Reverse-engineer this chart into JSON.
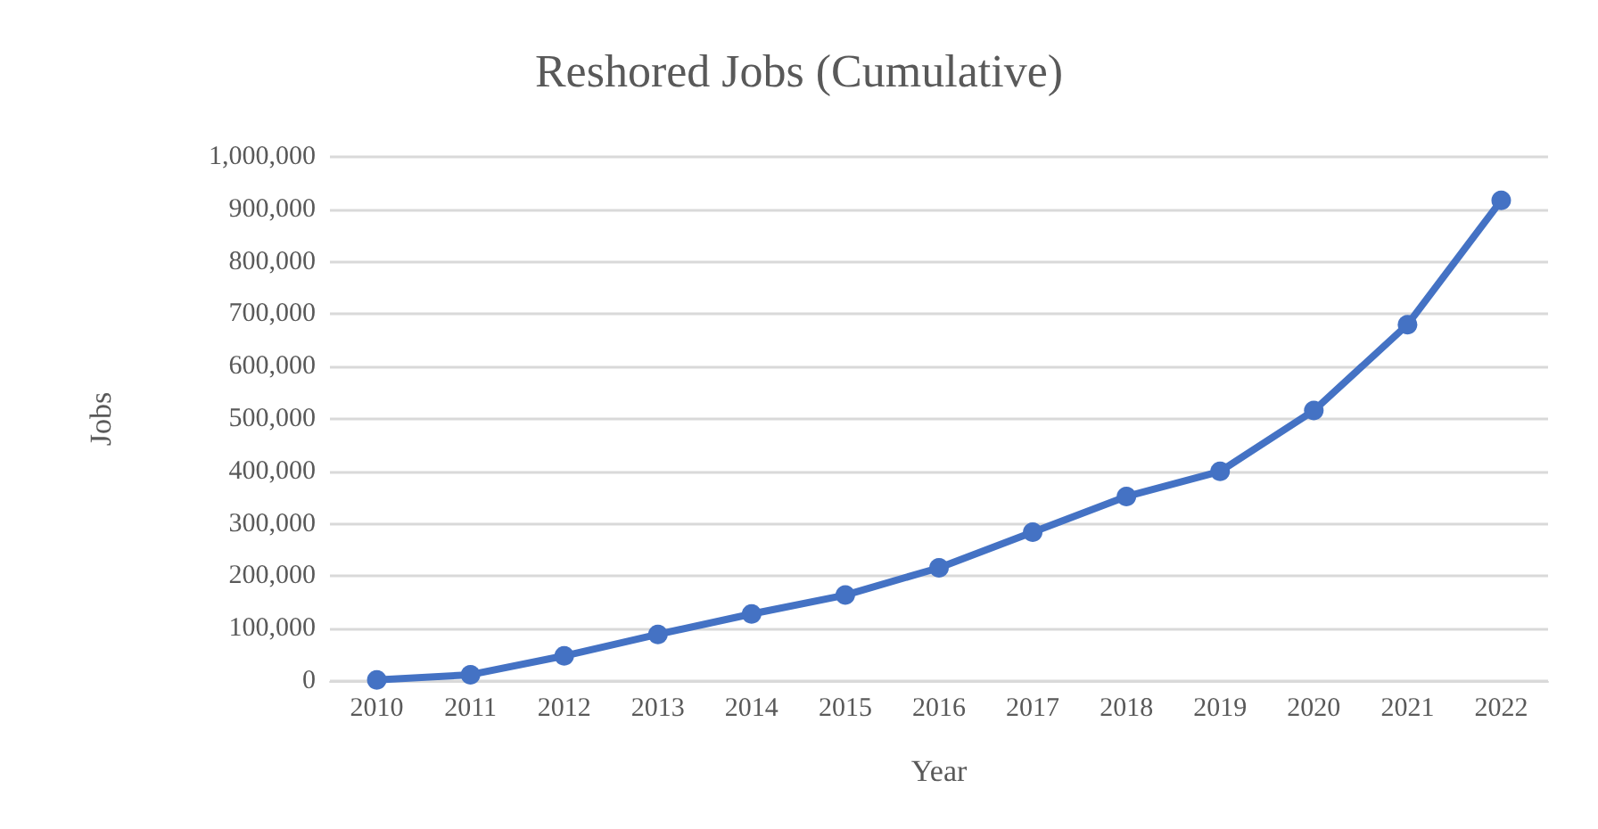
{
  "chart_data": {
    "type": "line",
    "title": "Reshored Jobs (Cumulative)",
    "xlabel": "Year",
    "ylabel": "Jobs",
    "categories": [
      "2010",
      "2011",
      "2012",
      "2013",
      "2014",
      "2015",
      "2016",
      "2017",
      "2018",
      "2019",
      "2020",
      "2021",
      "2022"
    ],
    "series": [
      {
        "color": "#4472c4",
        "values": [
          2000,
          12000,
          48000,
          89000,
          128000,
          164000,
          216000,
          284000,
          352000,
          400000,
          516000,
          680000,
          917000
        ]
      }
    ],
    "ylim": [
      0,
      1000000
    ],
    "yticks": [
      0,
      {
        "value": 100000,
        "label": "100,000"
      },
      {
        "value": 200000,
        "label": "200,000"
      },
      {
        "value": 300000,
        "label": "300,000"
      },
      {
        "value": 400000,
        "label": "400,000"
      },
      {
        "value": 500000,
        "label": "500,000"
      },
      {
        "value": 600000,
        "label": "600,000"
      },
      {
        "value": 700000,
        "label": "700,000"
      },
      {
        "value": 800000,
        "label": "800,000"
      },
      {
        "value": 900000,
        "label": "900,000"
      },
      {
        "value": 1000000,
        "label": "1,000,000"
      }
    ],
    "grid": "y",
    "marker": "circle",
    "line_style": "solid"
  }
}
